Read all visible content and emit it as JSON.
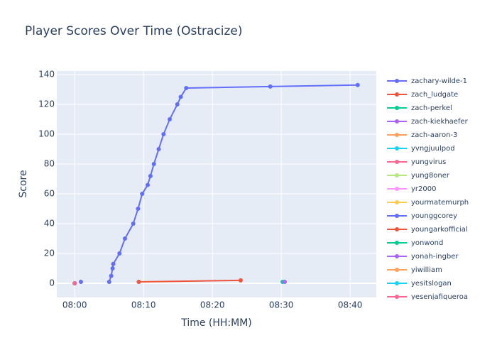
{
  "chart_data": {
    "type": "line",
    "title": "Player Scores Over Time (Ostracize)",
    "x_label": "Time (HH:MM)",
    "y_label": "Score",
    "xlim": [
      477.4,
      523.8
    ],
    "ylim": [
      -9.5,
      142.4
    ],
    "xticks": [
      {
        "value": 480,
        "label": "08:00"
      },
      {
        "value": 490,
        "label": "08:10"
      },
      {
        "value": 500,
        "label": "08:20"
      },
      {
        "value": 510,
        "label": "08:30"
      },
      {
        "value": 520,
        "label": "08:40"
      }
    ],
    "yticks": [
      0,
      20,
      40,
      60,
      80,
      100,
      120,
      140
    ],
    "grid": true,
    "series": [
      {
        "name": "zachary-wilde-1",
        "color": "#636efa",
        "x": [
          485.0,
          485.3,
          485.5,
          485.6,
          486.5,
          487.3,
          488.5,
          489.2,
          489.8,
          490.6,
          491.0,
          491.5,
          492.2,
          492.9,
          493.8,
          494.9,
          495.4,
          496.2,
          508.4,
          521.1
        ],
        "values": [
          1,
          5,
          10,
          13,
          20,
          30,
          40,
          50,
          60,
          66,
          72,
          80,
          90,
          100,
          110,
          120,
          125,
          131,
          132,
          133
        ]
      },
      {
        "name": "zach_ludgate",
        "color": "#EF553B",
        "x": [
          489.3,
          504.1
        ],
        "values": [
          1,
          2
        ]
      },
      {
        "name": "zach-perkel",
        "color": "#00cc96",
        "x": [
          510.2
        ],
        "values": [
          1
        ]
      },
      {
        "name": "zach-kiekhaefer",
        "color": "#ab63fa",
        "x": [
          510.5
        ],
        "values": [
          1
        ]
      },
      {
        "name": "zach-aaron-3",
        "color": "#FFA15A",
        "x": [
          480.0
        ],
        "values": [
          0
        ]
      },
      {
        "name": "yvngjuulpod",
        "color": "#19d3f3",
        "x": [
          480.0
        ],
        "values": [
          0
        ]
      },
      {
        "name": "yungvirus",
        "color": "#FF6692",
        "x": [
          480.0
        ],
        "values": [
          0
        ]
      },
      {
        "name": "yung8oner",
        "color": "#B6E880",
        "x": [
          480.0
        ],
        "values": [
          0
        ]
      },
      {
        "name": "yr2000",
        "color": "#FF97FF",
        "x": [
          480.0
        ],
        "values": [
          0
        ]
      },
      {
        "name": "yourmatemurph",
        "color": "#FECB52",
        "x": [
          480.0
        ],
        "values": [
          0
        ]
      },
      {
        "name": "younggcorey",
        "color": "#636efa",
        "x": [
          480.9
        ],
        "values": [
          1
        ]
      },
      {
        "name": "youngarkofficial",
        "color": "#EF553B",
        "x": [
          480.0
        ],
        "values": [
          0
        ]
      },
      {
        "name": "yonwond",
        "color": "#00cc96",
        "x": [
          480.0
        ],
        "values": [
          0
        ]
      },
      {
        "name": "yonah-ingber",
        "color": "#ab63fa",
        "x": [
          480.0
        ],
        "values": [
          0
        ]
      },
      {
        "name": "yiwilliam",
        "color": "#FFA15A",
        "x": [
          480.0
        ],
        "values": [
          0
        ]
      },
      {
        "name": "yesitslogan",
        "color": "#19d3f3",
        "x": [
          480.0
        ],
        "values": [
          0
        ]
      },
      {
        "name": "yesenjafigueroa",
        "color": "#FF6692",
        "x": [
          480.0
        ],
        "values": [
          0
        ]
      }
    ]
  }
}
